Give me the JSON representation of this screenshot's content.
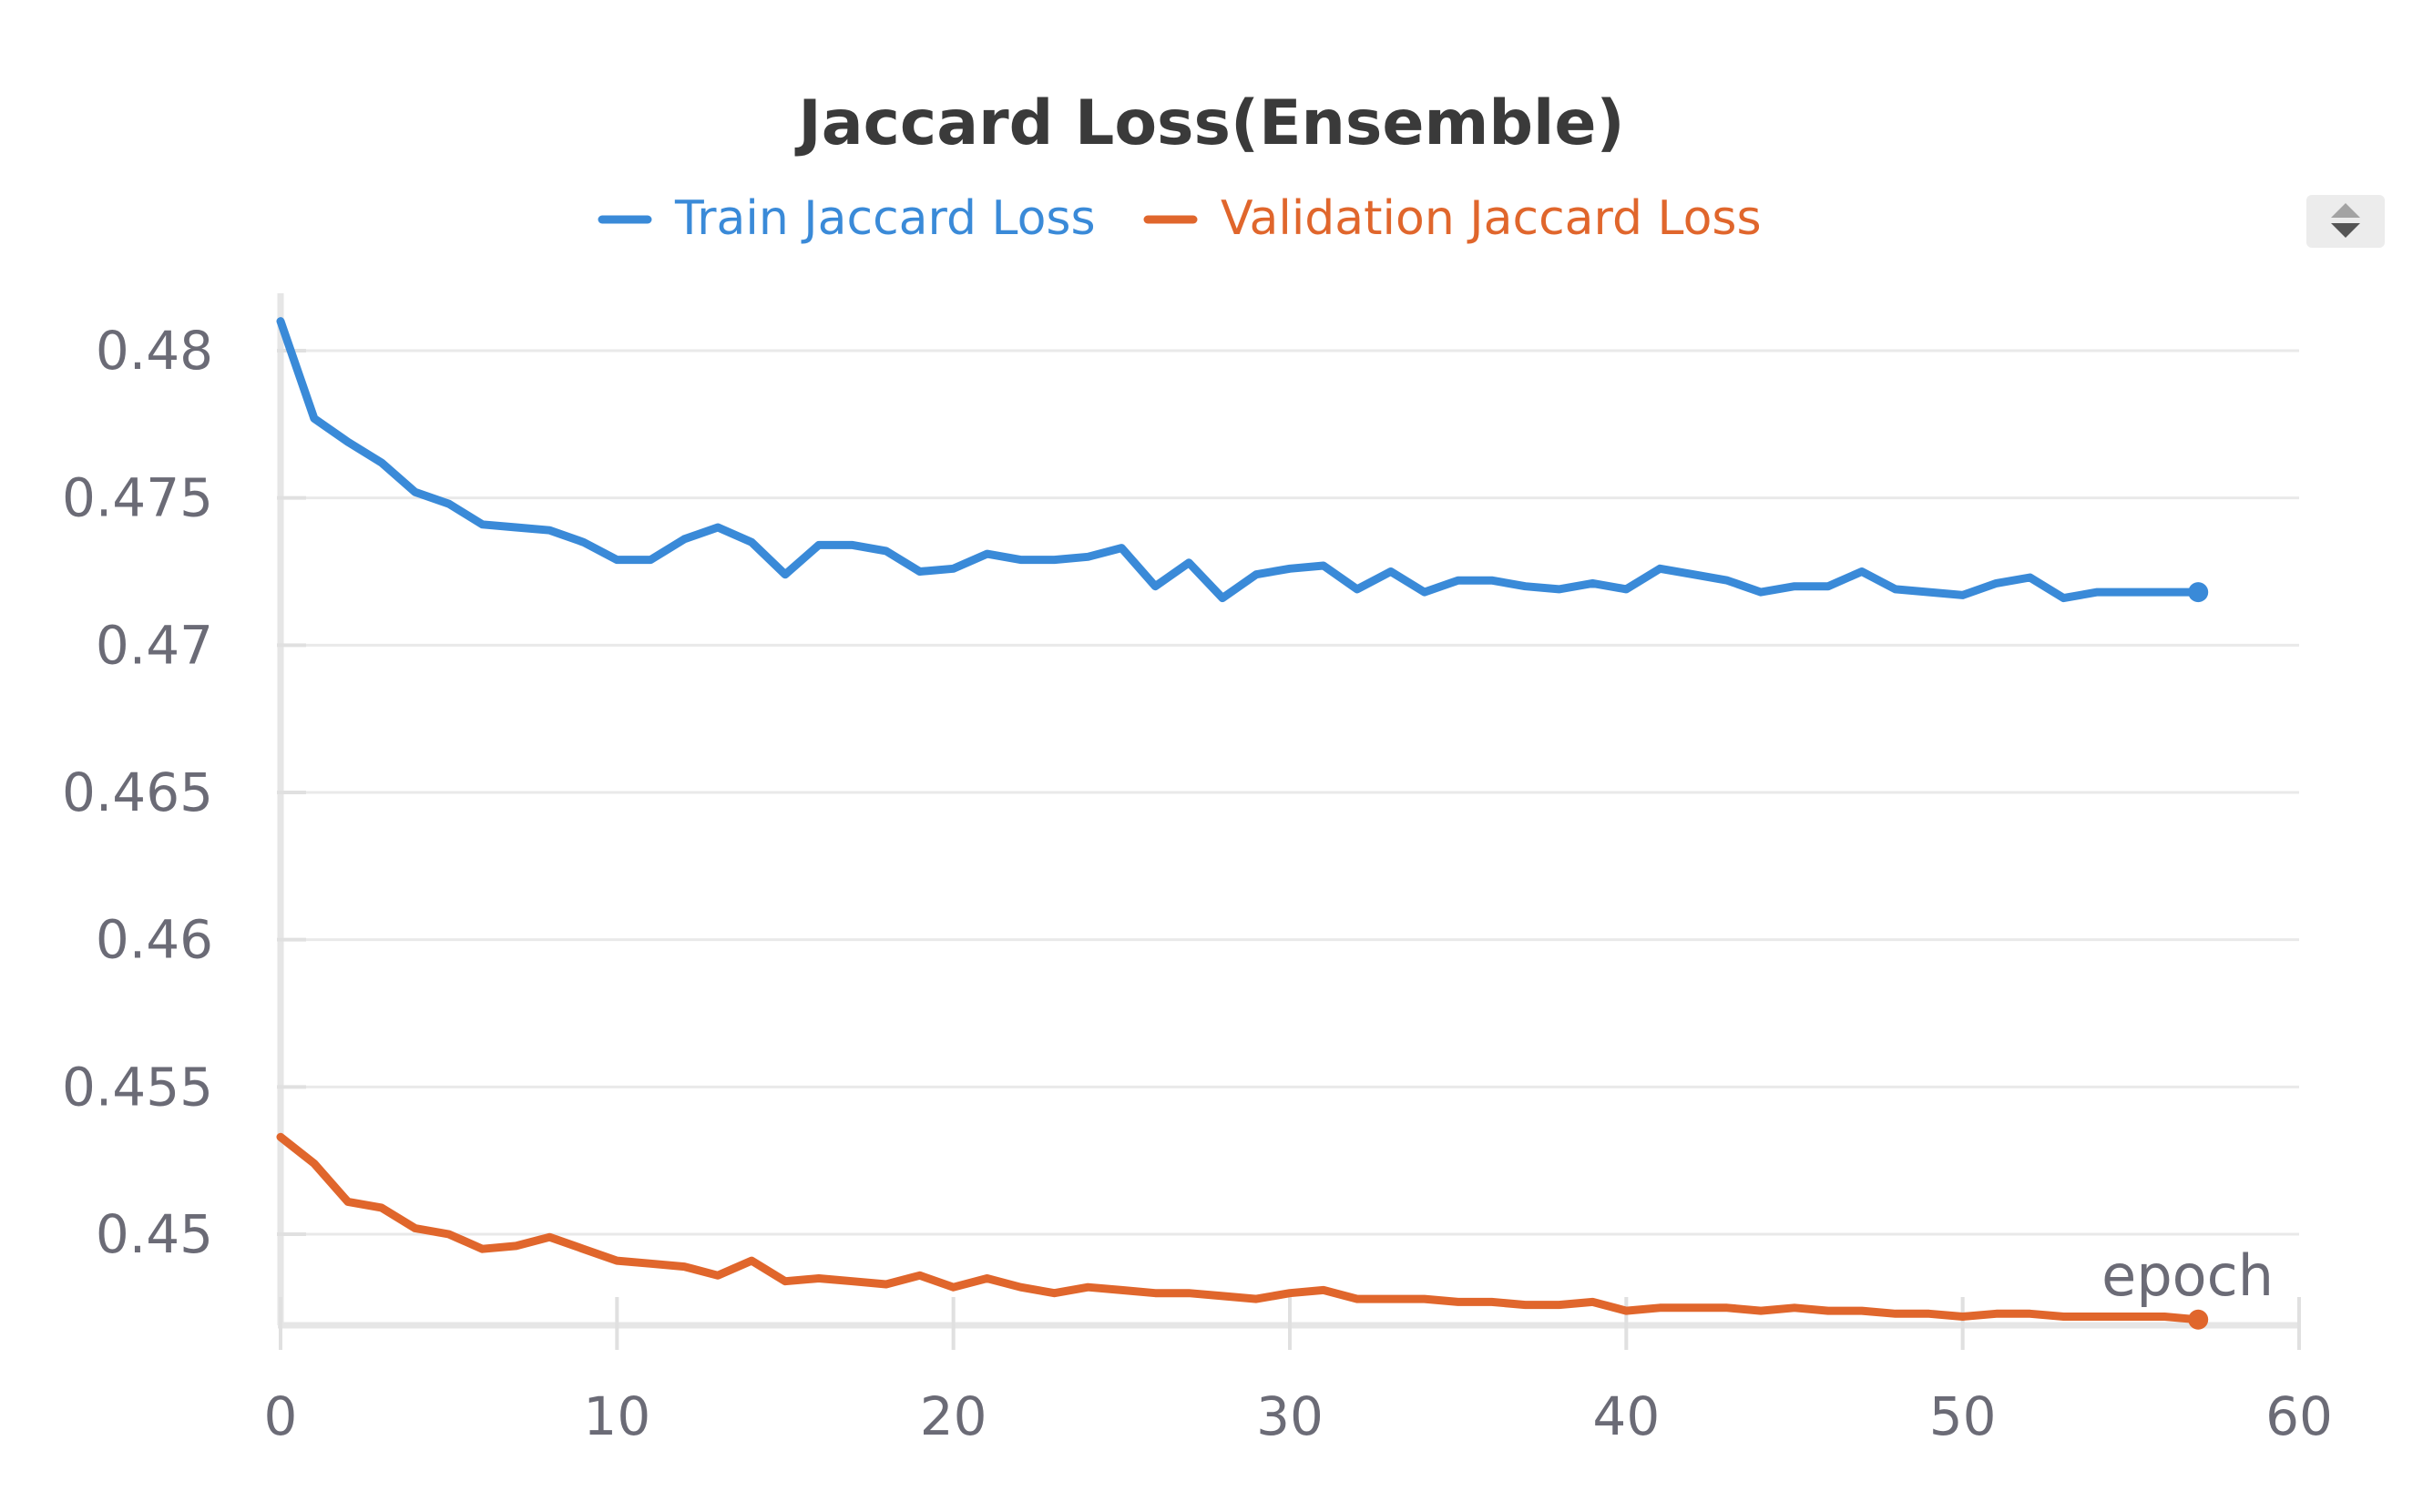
{
  "chart_data": {
    "type": "line",
    "title": "Jaccard Loss(Ensemble)",
    "xlabel": "epoch",
    "ylabel": "",
    "xlim": [
      0,
      60
    ],
    "ylim": [
      0.4471,
      0.4815
    ],
    "x_ticks": [
      0,
      10,
      20,
      30,
      40,
      50,
      60
    ],
    "x_tick_labels": [
      "0",
      "10",
      "20",
      "30",
      "40",
      "50",
      "60"
    ],
    "y_ticks": [
      0.45,
      0.455,
      0.46,
      0.465,
      0.47,
      0.475,
      0.48
    ],
    "y_tick_labels": [
      "0.45",
      "0.455",
      "0.46",
      "0.465",
      "0.47",
      "0.475",
      "0.48"
    ],
    "grid": true,
    "legend_position": "top-center",
    "x": [
      0,
      1,
      2,
      3,
      4,
      5,
      6,
      7,
      8,
      9,
      10,
      11,
      12,
      13,
      14,
      15,
      16,
      17,
      18,
      19,
      20,
      21,
      22,
      23,
      24,
      25,
      26,
      27,
      28,
      29,
      30,
      31,
      32,
      33,
      34,
      35,
      36,
      37,
      38,
      39,
      40,
      41,
      42,
      43,
      44,
      45,
      46,
      47,
      48,
      49,
      50,
      51,
      52,
      53,
      54,
      55,
      56,
      57
    ],
    "series": [
      {
        "name": "Train Jaccard Loss",
        "color": "#3a8ad8",
        "values": [
          0.481,
          0.4777,
          0.4769,
          0.4762,
          0.4752,
          0.4748,
          0.4741,
          0.474,
          0.4739,
          0.4735,
          0.4729,
          0.4729,
          0.4736,
          0.474,
          0.4735,
          0.4724,
          0.4734,
          0.4734,
          0.4732,
          0.4725,
          0.4726,
          0.4731,
          0.4729,
          0.4729,
          0.473,
          0.4733,
          0.472,
          0.4728,
          0.4716,
          0.4724,
          0.4726,
          0.4727,
          0.4719,
          0.4725,
          0.4718,
          0.4722,
          0.4722,
          0.472,
          0.4719,
          0.4721,
          0.4719,
          0.4726,
          0.4724,
          0.4722,
          0.4718,
          0.472,
          0.472,
          0.4725,
          0.4719,
          0.4718,
          0.4717,
          0.4721,
          0.4723,
          0.4716,
          0.4718,
          0.4718,
          0.4718,
          0.4718
        ]
      },
      {
        "name": "Validation Jaccard Loss",
        "color": "#e0662c",
        "values": [
          0.4533,
          0.4524,
          0.4511,
          0.4509,
          0.4502,
          0.45,
          0.4495,
          0.4496,
          0.4499,
          0.4495,
          0.4491,
          0.449,
          0.4489,
          0.4486,
          0.4491,
          0.4484,
          0.4485,
          0.4484,
          0.4483,
          0.4486,
          0.4482,
          0.4485,
          0.4482,
          0.448,
          0.4482,
          0.4481,
          0.448,
          0.448,
          0.4479,
          0.4478,
          0.448,
          0.4481,
          0.4478,
          0.4478,
          0.4478,
          0.4477,
          0.4477,
          0.4476,
          0.4476,
          0.4477,
          0.4474,
          0.4475,
          0.4475,
          0.4475,
          0.4474,
          0.4475,
          0.4474,
          0.4474,
          0.4473,
          0.4473,
          0.4472,
          0.4473,
          0.4473,
          0.4472,
          0.4472,
          0.4472,
          0.4472,
          0.4471
        ]
      }
    ]
  },
  "controls": {
    "sort_icon": "sort-arrows-icon"
  }
}
